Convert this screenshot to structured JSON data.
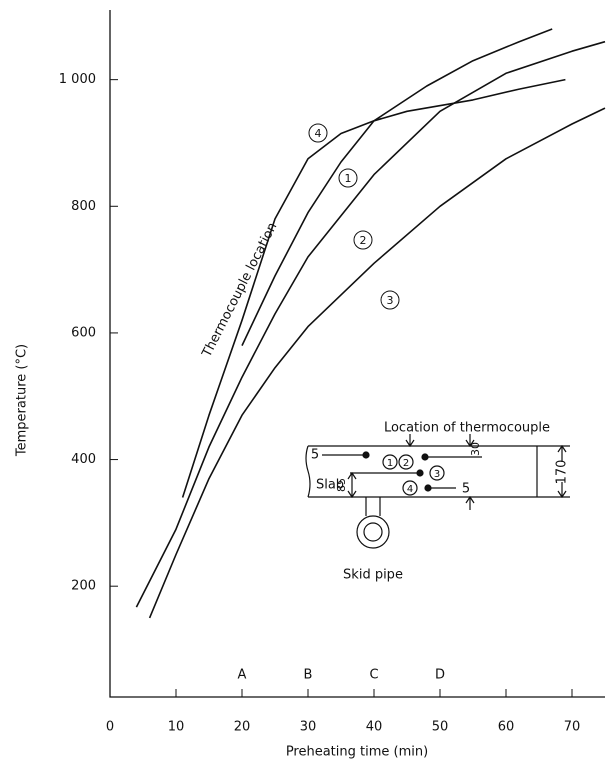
{
  "chart_data": {
    "type": "line",
    "x_label": "Preheating time (min)",
    "y_label": "Temperature (°C)",
    "annotation": "Thermocouple location",
    "xlim": [
      0,
      75
    ],
    "xticks": [
      0,
      10,
      20,
      30,
      40,
      50,
      60,
      70
    ],
    "ylim": [
      25,
      1110
    ],
    "yticks": [
      200,
      400,
      600,
      800,
      {
        "value": 1000,
        "label": "1 000"
      }
    ],
    "markers": [
      {
        "x": 20,
        "label": "A"
      },
      {
        "x": 30,
        "label": "B"
      },
      {
        "x": 40,
        "label": "C"
      },
      {
        "x": 50,
        "label": "D"
      }
    ],
    "series": [
      {
        "name": "4",
        "color": "#111111",
        "x": [
          11,
          15,
          20,
          25,
          30,
          35,
          40,
          45,
          55,
          62,
          69
        ],
        "values": [
          340,
          470,
          620,
          780,
          875,
          915,
          935,
          950,
          968,
          985,
          1000
        ]
      },
      {
        "name": "1",
        "color": "#111111",
        "x": [
          20,
          25,
          30,
          35,
          40,
          48,
          55,
          62,
          67
        ],
        "values": [
          580,
          690,
          790,
          870,
          935,
          990,
          1030,
          1060,
          1080
        ]
      },
      {
        "name": "2",
        "color": "#111111",
        "x": [
          4,
          10,
          15,
          20,
          25,
          30,
          40,
          50,
          60,
          70,
          75
        ],
        "values": [
          167,
          290,
          420,
          530,
          630,
          720,
          850,
          950,
          1010,
          1045,
          1060
        ]
      },
      {
        "name": "3",
        "color": "#111111",
        "x": [
          6,
          10,
          15,
          20,
          25,
          30,
          40,
          50,
          60,
          70,
          75
        ],
        "values": [
          150,
          250,
          370,
          470,
          545,
          610,
          710,
          800,
          875,
          930,
          955
        ]
      }
    ]
  },
  "inset": {
    "title": "Location of thermocouple",
    "slab": "Slab",
    "pipe": "Skid pipe",
    "dims": [
      "5",
      "30",
      "85",
      "5",
      "170"
    ],
    "points": [
      "1",
      "2",
      "3",
      "4"
    ]
  }
}
